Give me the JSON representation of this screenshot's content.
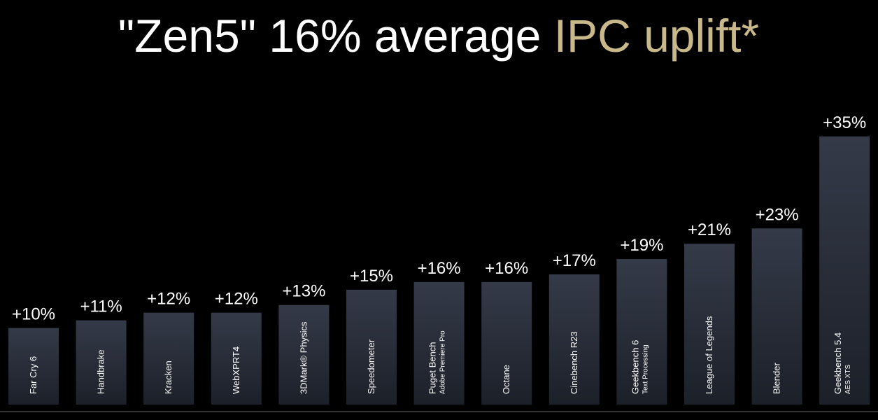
{
  "chart_data": {
    "type": "bar",
    "title": "\"Zen5\" 16% average",
    "title_highlight": "IPC uplift*",
    "categories": [
      [
        "Far Cry 6"
      ],
      [
        "Handbrake"
      ],
      [
        "Kracken"
      ],
      [
        "WebXPRT4"
      ],
      [
        "3DMark® Physics"
      ],
      [
        "Speedometer"
      ],
      [
        "Puget Bench",
        "Adobe Premiere Pro"
      ],
      [
        "Octane"
      ],
      [
        "Cinebench R23"
      ],
      [
        "Geekbench 6",
        "Text Processing"
      ],
      [
        "League of Legends"
      ],
      [
        "Blender"
      ],
      [
        "Geekbench 5.4",
        "AES XTS"
      ]
    ],
    "values": [
      10,
      11,
      12,
      12,
      13,
      15,
      16,
      16,
      17,
      19,
      21,
      23,
      35
    ],
    "value_labels": [
      "+10%",
      "+11%",
      "+12%",
      "+12%",
      "+13%",
      "+15%",
      "+16%",
      "+16%",
      "+17%",
      "+19%",
      "+21%",
      "+23%",
      "+35%"
    ],
    "color": "#262b37",
    "highlight_color": "#c9b98a"
  }
}
